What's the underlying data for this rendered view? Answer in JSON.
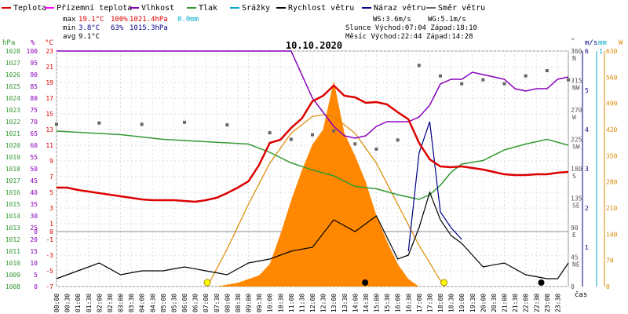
{
  "legend": {
    "items": [
      {
        "label": "Teplota",
        "color": "#dd0000"
      },
      {
        "label": "Přízemní teplota",
        "color": "#ff00ff"
      },
      {
        "label": "Vlhkost",
        "color": "#8800bb"
      },
      {
        "label": "Tlak",
        "color": "#339933"
      },
      {
        "label": "Srážky",
        "color": "#00aacc"
      },
      {
        "label": "Rychlost větru",
        "color": "#000000"
      },
      {
        "label": "Náraz větru",
        "color": "#000088"
      },
      {
        "label": "Směr větru",
        "color": "#666666"
      }
    ]
  },
  "stats": {
    "max_label": "max",
    "max_temp": "19.1°C",
    "max_hum": "100%",
    "max_press": "1021.4hPa",
    "max_rain": "0.0mm",
    "min_label": "min",
    "min_temp": "3.8°C",
    "min_hum": "63%",
    "min_press": "1015.3hPa",
    "avg_label": "avg",
    "avg_temp": "9.1°C",
    "ws": "WS:3.6m/s",
    "wg": "WG:5.1m/s",
    "slunce": "Slunce Východ:07:04  Západ:18:10",
    "mesic": "Měsíc  Východ:22:44  Západ:14:28"
  },
  "date": "10.10.2020",
  "axis_units": {
    "hpa": "hPa",
    "pct": "%",
    "degc": "°C",
    "deg": "°",
    "ms": "m/s",
    "mm": "mm",
    "w": "W",
    "cas": "čas"
  },
  "colors": {
    "temp": "#dd0000",
    "hum": "#8800bb",
    "press": "#339933",
    "wind": "#000000",
    "gust": "#000088",
    "dir": "#666666",
    "solar_fill": "#ff8800",
    "solar_curve": "#dd8800",
    "rain": "#00aacc",
    "sun_marker": "#ffff00"
  },
  "chart_data": {
    "type": "line",
    "title": "10.10.2020",
    "x_range": [
      "00:00",
      "24:00"
    ],
    "x_ticks": [
      "00:00",
      "00:30",
      "01:00",
      "01:30",
      "02:00",
      "02:30",
      "03:00",
      "03:30",
      "04:00",
      "04:30",
      "05:00",
      "05:30",
      "06:00",
      "06:30",
      "07:00",
      "07:30",
      "08:00",
      "08:30",
      "09:00",
      "09:30",
      "10:00",
      "10:30",
      "11:00",
      "11:30",
      "12:00",
      "12:30",
      "13:00",
      "13:30",
      "14:00",
      "14:30",
      "15:00",
      "15:30",
      "16:00",
      "16:30",
      "17:00",
      "17:30",
      "18:00",
      "18:30",
      "19:00",
      "19:30",
      "20:00",
      "20:30",
      "21:00",
      "21:30",
      "22:00",
      "22:30",
      "23:00",
      "23:30"
    ],
    "axes": {
      "hpa": {
        "min": 1008,
        "max": 1028,
        "ticks": [
          1028,
          1027,
          1026,
          1025,
          1024,
          1023,
          1022,
          1021,
          1020,
          1019,
          1018,
          1017,
          1016,
          1015,
          1014,
          1013,
          1012,
          1011,
          1010,
          1009,
          1008
        ]
      },
      "pct": {
        "min": 0,
        "max": 100,
        "ticks": [
          100,
          95,
          90,
          85,
          80,
          75,
          70,
          65,
          60,
          55,
          50,
          45,
          40,
          35,
          30,
          25,
          20,
          15,
          10,
          5,
          0
        ]
      },
      "degc": {
        "min": -7,
        "max": 23,
        "ticks": [
          23,
          21,
          19,
          17,
          15,
          13,
          11,
          9,
          7,
          5,
          3,
          1,
          -1,
          -3,
          -5,
          -7
        ]
      },
      "zero_labels": [
        "0",
        "0"
      ],
      "dir": {
        "min": 0,
        "max": 360,
        "ticks": [
          {
            "v": 360,
            "l": "N"
          },
          {
            "v": 315,
            "l": "NW"
          },
          {
            "v": 270,
            "l": "W"
          },
          {
            "v": 225,
            "l": "SW"
          },
          {
            "v": 180,
            "l": "S"
          },
          {
            "v": 135,
            "l": "SE"
          },
          {
            "v": 90,
            "l": "E"
          },
          {
            "v": 45,
            "l": "NE"
          },
          {
            "v": 0,
            "l": ""
          }
        ]
      },
      "ms": {
        "min": 0,
        "max": 6,
        "ticks": [
          6,
          5,
          4,
          3,
          2,
          1
        ]
      },
      "mm": {
        "min": 0,
        "max": 1,
        "ticks": [
          1
        ]
      },
      "w": {
        "min": 0,
        "max": 630,
        "ticks": [
          630,
          560,
          490,
          420,
          350,
          280,
          210,
          140,
          70,
          0
        ]
      }
    },
    "series": [
      {
        "name": "Teplota",
        "unit": "°C",
        "points": [
          [
            0,
            5.6
          ],
          [
            0.5,
            5.6
          ],
          [
            1,
            5.3
          ],
          [
            1.5,
            5.1
          ],
          [
            2,
            4.9
          ],
          [
            2.5,
            4.7
          ],
          [
            3,
            4.5
          ],
          [
            3.5,
            4.3
          ],
          [
            4,
            4.1
          ],
          [
            4.5,
            4.0
          ],
          [
            5,
            4.0
          ],
          [
            5.5,
            4.0
          ],
          [
            6,
            3.9
          ],
          [
            6.5,
            3.8
          ],
          [
            7,
            4.0
          ],
          [
            7.5,
            4.3
          ],
          [
            8,
            4.9
          ],
          [
            8.5,
            5.6
          ],
          [
            9,
            6.4
          ],
          [
            9.5,
            8.5
          ],
          [
            10,
            11.3
          ],
          [
            10.5,
            11.7
          ],
          [
            11,
            13.2
          ],
          [
            11.5,
            14.4
          ],
          [
            12,
            16.6
          ],
          [
            12.5,
            17.3
          ],
          [
            13,
            18.6
          ],
          [
            13.5,
            17.3
          ],
          [
            14,
            17.1
          ],
          [
            14.5,
            16.4
          ],
          [
            15,
            16.5
          ],
          [
            15.5,
            16.2
          ],
          [
            16,
            15.2
          ],
          [
            16.5,
            14.3
          ],
          [
            17,
            11.3
          ],
          [
            17.5,
            9.2
          ],
          [
            18,
            8.3
          ],
          [
            18.5,
            8.2
          ],
          [
            19,
            8.3
          ],
          [
            19.5,
            8.1
          ],
          [
            20,
            7.9
          ],
          [
            20.5,
            7.6
          ],
          [
            21,
            7.3
          ],
          [
            21.5,
            7.2
          ],
          [
            22,
            7.2
          ],
          [
            22.5,
            7.3
          ],
          [
            23,
            7.3
          ],
          [
            23.5,
            7.5
          ],
          [
            24,
            7.6
          ]
        ]
      },
      {
        "name": "Vlhkost",
        "unit": "%",
        "points": [
          [
            0,
            100
          ],
          [
            4,
            100
          ],
          [
            8,
            100
          ],
          [
            11,
            100
          ],
          [
            11.5,
            90
          ],
          [
            12,
            80
          ],
          [
            12.5,
            74
          ],
          [
            13,
            68
          ],
          [
            13.5,
            64
          ],
          [
            14,
            63
          ],
          [
            14.5,
            64
          ],
          [
            15,
            68
          ],
          [
            15.5,
            70
          ],
          [
            16,
            70
          ],
          [
            16.5,
            70
          ],
          [
            17,
            72
          ],
          [
            17.5,
            77
          ],
          [
            18,
            86
          ],
          [
            18.5,
            88
          ],
          [
            19,
            88
          ],
          [
            19.5,
            91
          ],
          [
            20,
            90
          ],
          [
            20.5,
            89
          ],
          [
            21,
            88
          ],
          [
            21.5,
            84
          ],
          [
            22,
            83
          ],
          [
            22.5,
            84
          ],
          [
            23,
            84
          ],
          [
            23.5,
            88
          ],
          [
            24,
            89
          ]
        ]
      },
      {
        "name": "Tlak",
        "unit": "hPa",
        "points": [
          [
            0,
            1021.2
          ],
          [
            1,
            1021.1
          ],
          [
            2,
            1021.0
          ],
          [
            3,
            1020.9
          ],
          [
            4,
            1020.7
          ],
          [
            5,
            1020.5
          ],
          [
            6,
            1020.4
          ],
          [
            7,
            1020.3
          ],
          [
            8,
            1020.2
          ],
          [
            9,
            1020.1
          ],
          [
            10,
            1019.4
          ],
          [
            11,
            1018.5
          ],
          [
            12,
            1017.9
          ],
          [
            13,
            1017.4
          ],
          [
            14,
            1016.5
          ],
          [
            15,
            1016.3
          ],
          [
            16,
            1015.8
          ],
          [
            17,
            1015.4
          ],
          [
            17.5,
            1015.8
          ],
          [
            18,
            1016.6
          ],
          [
            18.5,
            1017.7
          ],
          [
            19,
            1018.4
          ],
          [
            20,
            1018.7
          ],
          [
            21,
            1019.6
          ],
          [
            22,
            1020.1
          ],
          [
            23,
            1020.5
          ],
          [
            24,
            1020.0
          ]
        ]
      },
      {
        "name": "Rychlost větru",
        "unit": "m/s",
        "points": [
          [
            0,
            0.2
          ],
          [
            1,
            0.4
          ],
          [
            2,
            0.6
          ],
          [
            3,
            0.3
          ],
          [
            4,
            0.4
          ],
          [
            5,
            0.4
          ],
          [
            6,
            0.5
          ],
          [
            7,
            0.4
          ],
          [
            8,
            0.3
          ],
          [
            9,
            0.6
          ],
          [
            10,
            0.7
          ],
          [
            11,
            0.9
          ],
          [
            12,
            1.0
          ],
          [
            13,
            1.7
          ],
          [
            14,
            1.4
          ],
          [
            15,
            1.8
          ],
          [
            16,
            0.7
          ],
          [
            16.5,
            0.8
          ],
          [
            17,
            1.5
          ],
          [
            17.5,
            2.4
          ],
          [
            18,
            1.7
          ],
          [
            18.5,
            1.3
          ],
          [
            19,
            1.1
          ],
          [
            20,
            0.5
          ],
          [
            21,
            0.6
          ],
          [
            22,
            0.3
          ],
          [
            23,
            0.2
          ],
          [
            23.5,
            0.2
          ],
          [
            24,
            0.6
          ]
        ]
      },
      {
        "name": "Náraz větru",
        "unit": "m/s",
        "points": [
          [
            16.5,
            0.9
          ],
          [
            17,
            3.4
          ],
          [
            17.5,
            4.2
          ],
          [
            18,
            1.9
          ],
          [
            18.5,
            1.5
          ],
          [
            19,
            1.2
          ]
        ]
      },
      {
        "name": "Směr větru",
        "unit": "°",
        "points": [
          [
            0,
            248
          ],
          [
            2,
            250
          ],
          [
            4,
            248
          ],
          [
            6,
            251
          ],
          [
            8,
            247
          ],
          [
            10,
            235
          ],
          [
            11,
            225
          ],
          [
            12,
            232
          ],
          [
            13,
            238
          ],
          [
            14,
            218
          ],
          [
            15,
            210
          ],
          [
            16,
            224
          ],
          [
            17,
            338
          ],
          [
            18,
            322
          ],
          [
            19,
            310
          ],
          [
            20,
            316
          ],
          [
            21,
            310
          ],
          [
            22,
            322
          ],
          [
            23,
            330
          ],
          [
            24,
            316
          ]
        ]
      },
      {
        "name": "Solar",
        "unit": "W",
        "points": [
          [
            7.5,
            0
          ],
          [
            8.5,
            10
          ],
          [
            9.5,
            30
          ],
          [
            10,
            60
          ],
          [
            10.5,
            140
          ],
          [
            11,
            230
          ],
          [
            11.5,
            310
          ],
          [
            12,
            380
          ],
          [
            12.5,
            420
          ],
          [
            13,
            550
          ],
          [
            13.5,
            410
          ],
          [
            14,
            350
          ],
          [
            14.5,
            280
          ],
          [
            15,
            190
          ],
          [
            15.5,
            120
          ],
          [
            16,
            60
          ],
          [
            16.5,
            20
          ],
          [
            17,
            0
          ]
        ]
      },
      {
        "name": "Solar theoretical",
        "unit": "W",
        "points": [
          [
            7.07,
            0
          ],
          [
            8,
            100
          ],
          [
            9,
            220
          ],
          [
            10,
            330
          ],
          [
            11,
            410
          ],
          [
            12,
            455
          ],
          [
            12.6,
            460
          ],
          [
            13,
            455
          ],
          [
            14,
            410
          ],
          [
            15,
            330
          ],
          [
            16,
            220
          ],
          [
            17,
            110
          ],
          [
            18.17,
            0
          ]
        ]
      }
    ],
    "sun_markers": [
      7.07,
      18.17
    ],
    "moon_markers": [
      14.47,
      22.73
    ],
    "grid": true,
    "legend_position": "top"
  }
}
